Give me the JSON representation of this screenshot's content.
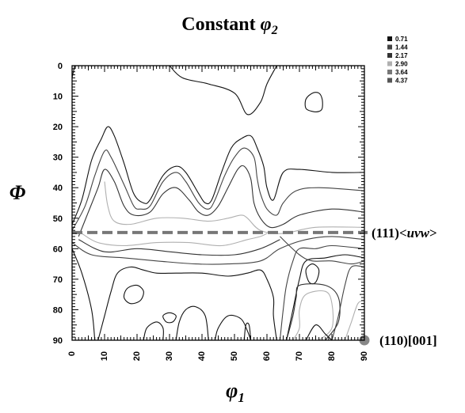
{
  "chart_data": {
    "type": "contour",
    "title_main": "Constant ",
    "title_symbol": "φ",
    "title_sub": "2",
    "xlabel_symbol": "φ",
    "xlabel_sub": "1",
    "ylabel": "Φ",
    "xlim": [
      0,
      90
    ],
    "ylim": [
      0,
      90
    ],
    "y_inverted": true,
    "x_ticks": [
      "0",
      "10",
      "20",
      "30",
      "40",
      "50",
      "60",
      "70",
      "80",
      "90"
    ],
    "y_ticks": [
      "0",
      "10",
      "20",
      "30",
      "40",
      "50",
      "60",
      "70",
      "80",
      "90"
    ],
    "legend": {
      "position": "top-right",
      "items": [
        {
          "label": "0.71",
          "color": "#111111"
        },
        {
          "label": "1.44",
          "color": "#444444"
        },
        {
          "label": "2.17",
          "color": "#333333"
        },
        {
          "label": "2.90",
          "color": "#b0b0b0"
        },
        {
          "label": "3.64",
          "color": "#777777"
        },
        {
          "label": "4.37",
          "color": "#555555"
        }
      ]
    },
    "contours": [
      {
        "level": "0.71",
        "color": "#111111",
        "closed": false,
        "points": [
          [
            30,
            0
          ],
          [
            34,
            4
          ],
          [
            42,
            6
          ],
          [
            50,
            9
          ],
          [
            54,
            16
          ],
          [
            58,
            12
          ],
          [
            60,
            6
          ],
          [
            63,
            0
          ]
        ]
      },
      {
        "level": "0.71",
        "color": "#111111",
        "closed": false,
        "points": [
          [
            0,
            4
          ],
          [
            0.8,
            0
          ]
        ]
      },
      {
        "level": "0.71",
        "color": "#111111",
        "closed": true,
        "points": [
          [
            72,
            11
          ],
          [
            74,
            9
          ],
          [
            76,
            9
          ],
          [
            77,
            11
          ],
          [
            77,
            14
          ],
          [
            76,
            15
          ],
          [
            74,
            15
          ],
          [
            72,
            14
          ]
        ]
      },
      {
        "level": "0.71",
        "color": "#111111",
        "closed": false,
        "points": [
          [
            0,
            52
          ],
          [
            3,
            44
          ],
          [
            6,
            31
          ],
          [
            9,
            24
          ],
          [
            11,
            20
          ],
          [
            13,
            23
          ],
          [
            16,
            32
          ],
          [
            19,
            42
          ],
          [
            22,
            45
          ],
          [
            24,
            44
          ],
          [
            28,
            36
          ],
          [
            32,
            33
          ],
          [
            35,
            35
          ],
          [
            39,
            42
          ],
          [
            41,
            45
          ],
          [
            43,
            44
          ],
          [
            46,
            35
          ],
          [
            49,
            27
          ],
          [
            52,
            24
          ],
          [
            55,
            23
          ],
          [
            57,
            27
          ],
          [
            59,
            33
          ],
          [
            60,
            40
          ],
          [
            62,
            44
          ],
          [
            65,
            35
          ],
          [
            70,
            34
          ],
          [
            80,
            35
          ],
          [
            90,
            35
          ]
        ]
      },
      {
        "level": "1.44",
        "color": "#444444",
        "closed": false,
        "points": [
          [
            0,
            54
          ],
          [
            4,
            46
          ],
          [
            7,
            36
          ],
          [
            10,
            28
          ],
          [
            12,
            30
          ],
          [
            16,
            39
          ],
          [
            19,
            46
          ],
          [
            21,
            47
          ],
          [
            24,
            46
          ],
          [
            28,
            38
          ],
          [
            32,
            35
          ],
          [
            35,
            38
          ],
          [
            39,
            45
          ],
          [
            42,
            47
          ],
          [
            44,
            44
          ],
          [
            47,
            36
          ],
          [
            50,
            30
          ],
          [
            53,
            27
          ],
          [
            56,
            30
          ],
          [
            57,
            37
          ],
          [
            58,
            42
          ],
          [
            60,
            47
          ],
          [
            63,
            49
          ],
          [
            65,
            45
          ],
          [
            69,
            41
          ],
          [
            76,
            40
          ],
          [
            90,
            41
          ]
        ]
      },
      {
        "level": "2.17",
        "color": "#333333",
        "closed": false,
        "points": [
          [
            2,
            56
          ],
          [
            5,
            48
          ],
          [
            8,
            40
          ],
          [
            10,
            34
          ],
          [
            13,
            38
          ],
          [
            16,
            46
          ],
          [
            19,
            49
          ],
          [
            24,
            48
          ],
          [
            28,
            42
          ],
          [
            32,
            40
          ],
          [
            36,
            44
          ],
          [
            39,
            48
          ],
          [
            42,
            49
          ],
          [
            45,
            46
          ],
          [
            48,
            40
          ],
          [
            51,
            34
          ],
          [
            53,
            33
          ],
          [
            55,
            37
          ],
          [
            56,
            45
          ],
          [
            58,
            50
          ],
          [
            61,
            53
          ],
          [
            65,
            52
          ],
          [
            70,
            49
          ],
          [
            80,
            47
          ],
          [
            90,
            48
          ]
        ]
      },
      {
        "level": "2.90",
        "color": "#b0b0b0",
        "closed": false,
        "points": [
          [
            10,
            38
          ],
          [
            11,
            46
          ],
          [
            13,
            51
          ],
          [
            18,
            52
          ],
          [
            26,
            50
          ],
          [
            34,
            50
          ],
          [
            42,
            51
          ],
          [
            48,
            50
          ],
          [
            52,
            49
          ],
          [
            54,
            50
          ],
          [
            58,
            54
          ],
          [
            65,
            55
          ],
          [
            75,
            53
          ],
          [
            90,
            53
          ]
        ]
      },
      {
        "level": "2.90",
        "color": "#b0b0b0",
        "closed": false,
        "points": [
          [
            3,
            55
          ],
          [
            8,
            58
          ],
          [
            16,
            59
          ],
          [
            26,
            58
          ],
          [
            36,
            58
          ],
          [
            46,
            59
          ],
          [
            54,
            57
          ],
          [
            58,
            56
          ],
          [
            60,
            55
          ]
        ]
      },
      {
        "level": "2.17",
        "color": "#333333",
        "closed": false,
        "points": [
          [
            2,
            57
          ],
          [
            10,
            61
          ],
          [
            20,
            60
          ],
          [
            30,
            61
          ],
          [
            40,
            62
          ],
          [
            50,
            62
          ],
          [
            58,
            60
          ],
          [
            64,
            57
          ]
        ]
      },
      {
        "level": "1.44",
        "color": "#444444",
        "closed": false,
        "points": [
          [
            0,
            58
          ],
          [
            6,
            62
          ],
          [
            16,
            63
          ],
          [
            26,
            64
          ],
          [
            38,
            65
          ],
          [
            48,
            65
          ],
          [
            58,
            64
          ],
          [
            64,
            60
          ],
          [
            72,
            57
          ],
          [
            80,
            56
          ],
          [
            90,
            57
          ]
        ]
      },
      {
        "level": "0.71",
        "color": "#111111",
        "closed": false,
        "points": [
          [
            0,
            60
          ],
          [
            3,
            68
          ],
          [
            6,
            80
          ],
          [
            7,
            90
          ]
        ]
      },
      {
        "level": "0.71",
        "color": "#111111",
        "closed": false,
        "points": [
          [
            8,
            90
          ],
          [
            10,
            82
          ],
          [
            12,
            74
          ],
          [
            14,
            68
          ],
          [
            18,
            66
          ],
          [
            22,
            67
          ],
          [
            26,
            68
          ],
          [
            32,
            68
          ],
          [
            40,
            68
          ],
          [
            48,
            69
          ],
          [
            54,
            68
          ],
          [
            58,
            67
          ],
          [
            60,
            70
          ],
          [
            62,
            76
          ],
          [
            62,
            82
          ],
          [
            63,
            90
          ]
        ]
      },
      {
        "level": "1.44",
        "color": "#444444",
        "closed": false,
        "points": [
          [
            64,
            90
          ],
          [
            65,
            80
          ],
          [
            66,
            72
          ],
          [
            68,
            64
          ],
          [
            70,
            60
          ],
          [
            75,
            60
          ],
          [
            80,
            59
          ],
          [
            90,
            60
          ]
        ]
      },
      {
        "level": "0.71",
        "color": "#111111",
        "closed": false,
        "points": [
          [
            66,
            90
          ],
          [
            68,
            80
          ],
          [
            70,
            70
          ],
          [
            72,
            64
          ],
          [
            78,
            63
          ],
          [
            84,
            62
          ],
          [
            90,
            63
          ]
        ]
      },
      {
        "level": "1.44",
        "color": "#444444",
        "closed": false,
        "points": [
          [
            64,
            56
          ],
          [
            70,
            62
          ],
          [
            74,
            64
          ],
          [
            80,
            64
          ],
          [
            86,
            65
          ],
          [
            90,
            64
          ]
        ]
      },
      {
        "level": "0.71",
        "color": "#111111",
        "closed": true,
        "points": [
          [
            17,
            73
          ],
          [
            20,
            72
          ],
          [
            22,
            74
          ],
          [
            21,
            77
          ],
          [
            18,
            78
          ],
          [
            16,
            76
          ]
        ]
      },
      {
        "level": "0.71",
        "color": "#111111",
        "closed": true,
        "points": [
          [
            28,
            82
          ],
          [
            30,
            81
          ],
          [
            32,
            82
          ],
          [
            31,
            84
          ],
          [
            29,
            84
          ]
        ]
      },
      {
        "level": "0.71",
        "color": "#111111",
        "closed": false,
        "points": [
          [
            22,
            90
          ],
          [
            23,
            86
          ],
          [
            26,
            84
          ],
          [
            28,
            86
          ],
          [
            28,
            90
          ]
        ]
      },
      {
        "level": "0.71",
        "color": "#111111",
        "closed": false,
        "points": [
          [
            32,
            90
          ],
          [
            33,
            84
          ],
          [
            35,
            80
          ],
          [
            38,
            79
          ],
          [
            41,
            82
          ],
          [
            42,
            90
          ]
        ]
      },
      {
        "level": "0.71",
        "color": "#111111",
        "closed": false,
        "points": [
          [
            44,
            90
          ],
          [
            45,
            86
          ],
          [
            48,
            82
          ],
          [
            52,
            83
          ],
          [
            54,
            87
          ],
          [
            55,
            90
          ]
        ]
      },
      {
        "level": "0.71",
        "color": "#111111",
        "closed": false,
        "points": [
          [
            53,
            90
          ],
          [
            53.5,
            85
          ],
          [
            54.5,
            85
          ],
          [
            55,
            90
          ]
        ]
      },
      {
        "level": "0.71",
        "color": "#111111",
        "closed": true,
        "points": [
          [
            72,
            67
          ],
          [
            74,
            65
          ],
          [
            76,
            67
          ],
          [
            75,
            71
          ],
          [
            73,
            71
          ]
        ]
      },
      {
        "level": "2.90",
        "color": "#b0b0b0",
        "closed": false,
        "points": [
          [
            68,
            90
          ],
          [
            70,
            86
          ],
          [
            70,
            80
          ],
          [
            72,
            75
          ],
          [
            78,
            74
          ],
          [
            80,
            78
          ],
          [
            80,
            86
          ],
          [
            76,
            90
          ]
        ]
      },
      {
        "level": "2.17",
        "color": "#333333",
        "closed": false,
        "points": [
          [
            66,
            90
          ],
          [
            68,
            82
          ],
          [
            69,
            76
          ],
          [
            70,
            72
          ],
          [
            78,
            72
          ],
          [
            82,
            76
          ],
          [
            82,
            84
          ],
          [
            78,
            90
          ]
        ]
      },
      {
        "level": "0.71",
        "color": "#111111",
        "closed": false,
        "points": [
          [
            72,
            90
          ],
          [
            75,
            85
          ],
          [
            78,
            88
          ],
          [
            80,
            90
          ]
        ]
      },
      {
        "level": "2.90",
        "color": "#b0b0b0",
        "closed": false,
        "points": [
          [
            84,
            90
          ],
          [
            86,
            84
          ],
          [
            88,
            78
          ],
          [
            90,
            77
          ]
        ]
      },
      {
        "level": "1.44",
        "color": "#444444",
        "closed": false,
        "points": [
          [
            80,
            90
          ],
          [
            82,
            82
          ],
          [
            84,
            72
          ],
          [
            86,
            66
          ],
          [
            90,
            66
          ]
        ]
      }
    ],
    "annotations": [
      {
        "label_main": "(111)<",
        "label_italic": "uvw",
        "label_end": ">",
        "type": "dashed-line",
        "y": 54.7,
        "x_range": [
          0,
          90
        ]
      },
      {
        "label": "(110)[001]",
        "type": "marker",
        "x": 90,
        "y": 90
      }
    ]
  }
}
